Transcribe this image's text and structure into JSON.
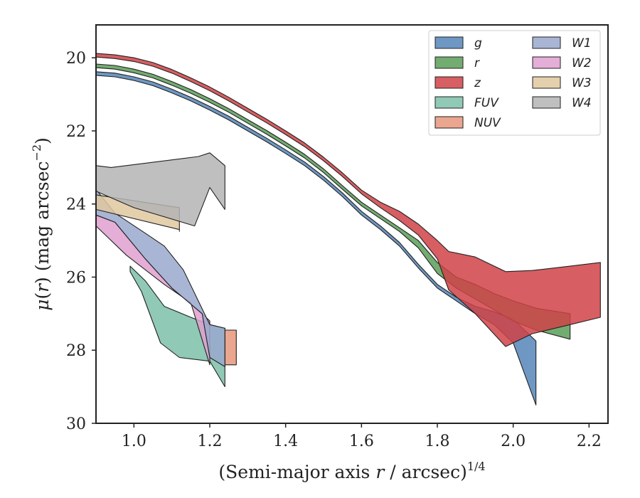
{
  "chart_data": {
    "type": "area",
    "xlabel": "(Semi-major axis r / arcsec)^1/4",
    "xlabel_parts": {
      "prefix": "(Semi-major axis ",
      "var": "r",
      "mid": " / arcsec)",
      "sup": "1/4"
    },
    "ylabel": "μ(r) (mag arcsec^−2)",
    "ylabel_parts": {
      "mu": "μ",
      "open": "(",
      "var": "r",
      "mid": ") (mag arcsec",
      "sup": "−2",
      "close": ")"
    },
    "xlim": [
      0.9,
      2.25
    ],
    "ylim": [
      30,
      19.1
    ],
    "y_inverted": true,
    "xticks": [
      1.0,
      1.2,
      1.4,
      1.6,
      1.8,
      2.0,
      2.2
    ],
    "xtick_labels": [
      "1.0",
      "1.2",
      "1.4",
      "1.6",
      "1.8",
      "2.0",
      "2.2"
    ],
    "yticks": [
      20,
      22,
      24,
      26,
      28,
      30
    ],
    "ytick_labels": [
      "20",
      "22",
      "24",
      "26",
      "28",
      "30"
    ],
    "grid": false,
    "legend_position": "top-right",
    "legend_columns": 2,
    "series": [
      {
        "name": "W4",
        "color": "#b4b4b4",
        "order": 8,
        "upper": [
          [
            0.9,
            22.95
          ],
          [
            0.94,
            23.0
          ],
          [
            1.17,
            22.7
          ],
          [
            1.2,
            22.6
          ],
          [
            1.24,
            22.95
          ],
          [
            1.24,
            24.15
          ]
        ],
        "lower": [
          [
            0.9,
            23.65
          ],
          [
            1.0,
            24.1
          ],
          [
            1.16,
            24.6
          ],
          [
            1.2,
            23.55
          ]
        ]
      },
      {
        "name": "W3",
        "color": "#e0c8a0",
        "order": 7,
        "upper": [
          [
            0.9,
            23.75
          ],
          [
            1.12,
            24.1
          ],
          [
            1.12,
            24.75
          ]
        ],
        "lower": [
          [
            0.9,
            24.15
          ],
          [
            1.12,
            24.7
          ]
        ]
      },
      {
        "name": "W1",
        "color": "#9aa8cc",
        "order": 6,
        "upper": [
          [
            0.9,
            23.6
          ],
          [
            0.95,
            24.25
          ],
          [
            1.03,
            24.8
          ],
          [
            1.08,
            25.15
          ],
          [
            1.13,
            25.8
          ],
          [
            1.2,
            27.3
          ],
          [
            1.24,
            27.4
          ]
        ],
        "lower": [
          [
            0.9,
            24.3
          ],
          [
            0.95,
            24.5
          ],
          [
            1.03,
            25.5
          ],
          [
            1.1,
            26.3
          ],
          [
            1.18,
            27.0
          ],
          [
            1.2,
            28.2
          ],
          [
            1.24,
            28.45
          ]
        ]
      },
      {
        "name": "W2",
        "color": "#dfa0d0",
        "order": 5,
        "upper": [
          [
            0.9,
            24.3
          ],
          [
            0.95,
            24.5
          ],
          [
            1.03,
            25.5
          ],
          [
            1.1,
            26.3
          ],
          [
            1.18,
            27.0
          ],
          [
            1.2,
            27.2
          ]
        ],
        "lower": [
          [
            0.9,
            24.6
          ],
          [
            0.98,
            25.4
          ],
          [
            1.08,
            26.2
          ],
          [
            1.15,
            26.7
          ],
          [
            1.2,
            28.4
          ]
        ]
      },
      {
        "name": "FUV",
        "color": "#7dbfa8",
        "order": 3,
        "upper": [
          [
            0.99,
            25.7
          ],
          [
            1.03,
            26.1
          ],
          [
            1.08,
            26.8
          ],
          [
            1.15,
            27.1
          ],
          [
            1.2,
            27.3
          ],
          [
            1.24,
            27.4
          ]
        ],
        "lower": [
          [
            0.99,
            25.85
          ],
          [
            1.02,
            26.4
          ],
          [
            1.07,
            27.8
          ],
          [
            1.12,
            28.2
          ],
          [
            1.2,
            28.3
          ],
          [
            1.24,
            29.0
          ]
        ]
      },
      {
        "name": "NUV",
        "color": "#e8977b",
        "order": 4,
        "upper": [
          [
            1.24,
            27.45
          ],
          [
            1.27,
            27.45
          ]
        ],
        "lower": [
          [
            1.24,
            28.4
          ],
          [
            1.27,
            28.4
          ]
        ]
      },
      {
        "name": "g",
        "color": "#5586b8",
        "order": 0,
        "upper": [
          [
            0.9,
            20.38
          ],
          [
            0.95,
            20.42
          ],
          [
            1.0,
            20.52
          ],
          [
            1.05,
            20.66
          ],
          [
            1.1,
            20.86
          ],
          [
            1.15,
            21.08
          ],
          [
            1.2,
            21.33
          ],
          [
            1.25,
            21.6
          ],
          [
            1.3,
            21.9
          ],
          [
            1.35,
            22.2
          ],
          [
            1.4,
            22.52
          ],
          [
            1.45,
            22.85
          ],
          [
            1.5,
            23.25
          ],
          [
            1.55,
            23.7
          ],
          [
            1.6,
            24.2
          ],
          [
            1.65,
            24.6
          ],
          [
            1.7,
            25.05
          ],
          [
            1.75,
            25.65
          ],
          [
            1.8,
            26.2
          ],
          [
            1.85,
            26.55
          ],
          [
            1.9,
            26.8
          ],
          [
            1.95,
            26.95
          ],
          [
            2.0,
            27.15
          ],
          [
            2.06,
            27.75
          ]
        ],
        "lower": [
          [
            0.9,
            20.48
          ],
          [
            0.95,
            20.52
          ],
          [
            1.0,
            20.62
          ],
          [
            1.05,
            20.76
          ],
          [
            1.1,
            20.96
          ],
          [
            1.15,
            21.18
          ],
          [
            1.2,
            21.43
          ],
          [
            1.25,
            21.7
          ],
          [
            1.3,
            22.0
          ],
          [
            1.35,
            22.3
          ],
          [
            1.4,
            22.62
          ],
          [
            1.45,
            22.95
          ],
          [
            1.5,
            23.35
          ],
          [
            1.55,
            23.8
          ],
          [
            1.6,
            24.3
          ],
          [
            1.65,
            24.7
          ],
          [
            1.7,
            25.15
          ],
          [
            1.75,
            25.75
          ],
          [
            1.8,
            26.3
          ],
          [
            1.85,
            26.65
          ],
          [
            1.9,
            27.0
          ],
          [
            1.95,
            27.3
          ],
          [
            2.0,
            27.8
          ],
          [
            2.06,
            29.5
          ]
        ]
      },
      {
        "name": "r",
        "color": "#5a9e58",
        "order": 1,
        "upper": [
          [
            0.9,
            20.17
          ],
          [
            0.95,
            20.21
          ],
          [
            1.0,
            20.31
          ],
          [
            1.05,
            20.45
          ],
          [
            1.1,
            20.65
          ],
          [
            1.15,
            20.87
          ],
          [
            1.2,
            21.12
          ],
          [
            1.25,
            21.39
          ],
          [
            1.3,
            21.69
          ],
          [
            1.35,
            21.99
          ],
          [
            1.4,
            22.31
          ],
          [
            1.45,
            22.64
          ],
          [
            1.5,
            23.04
          ],
          [
            1.55,
            23.5
          ],
          [
            1.6,
            23.95
          ],
          [
            1.65,
            24.3
          ],
          [
            1.7,
            24.65
          ],
          [
            1.75,
            25.0
          ],
          [
            1.8,
            25.6
          ],
          [
            1.85,
            26.0
          ],
          [
            1.9,
            26.2
          ],
          [
            1.95,
            26.45
          ],
          [
            2.0,
            26.65
          ],
          [
            2.06,
            26.85
          ],
          [
            2.15,
            27.0
          ]
        ],
        "lower": [
          [
            0.9,
            20.27
          ],
          [
            0.95,
            20.31
          ],
          [
            1.0,
            20.41
          ],
          [
            1.05,
            20.55
          ],
          [
            1.1,
            20.75
          ],
          [
            1.15,
            20.97
          ],
          [
            1.2,
            21.22
          ],
          [
            1.25,
            21.49
          ],
          [
            1.3,
            21.79
          ],
          [
            1.35,
            22.09
          ],
          [
            1.4,
            22.41
          ],
          [
            1.45,
            22.74
          ],
          [
            1.5,
            23.14
          ],
          [
            1.55,
            23.6
          ],
          [
            1.6,
            24.05
          ],
          [
            1.65,
            24.4
          ],
          [
            1.7,
            24.75
          ],
          [
            1.75,
            25.2
          ],
          [
            1.8,
            25.9
          ],
          [
            1.85,
            26.3
          ],
          [
            1.9,
            26.6
          ],
          [
            1.95,
            26.9
          ],
          [
            2.0,
            27.2
          ],
          [
            2.06,
            27.45
          ],
          [
            2.15,
            27.7
          ]
        ]
      },
      {
        "name": "z",
        "color": "#d04246",
        "order": 2,
        "upper": [
          [
            0.9,
            19.88
          ],
          [
            0.95,
            19.92
          ],
          [
            1.0,
            20.0
          ],
          [
            1.05,
            20.13
          ],
          [
            1.1,
            20.32
          ],
          [
            1.15,
            20.55
          ],
          [
            1.2,
            20.8
          ],
          [
            1.25,
            21.08
          ],
          [
            1.3,
            21.38
          ],
          [
            1.35,
            21.68
          ],
          [
            1.4,
            22.0
          ],
          [
            1.45,
            22.33
          ],
          [
            1.5,
            22.72
          ],
          [
            1.55,
            23.15
          ],
          [
            1.6,
            23.62
          ],
          [
            1.65,
            23.95
          ],
          [
            1.7,
            24.2
          ],
          [
            1.75,
            24.55
          ],
          [
            1.8,
            25.0
          ],
          [
            1.83,
            25.3
          ],
          [
            1.9,
            25.45
          ],
          [
            1.98,
            25.85
          ],
          [
            2.05,
            25.82
          ],
          [
            2.15,
            25.7
          ],
          [
            2.23,
            25.6
          ]
        ],
        "lower": [
          [
            0.9,
            19.98
          ],
          [
            0.95,
            20.02
          ],
          [
            1.0,
            20.1
          ],
          [
            1.05,
            20.23
          ],
          [
            1.1,
            20.42
          ],
          [
            1.15,
            20.65
          ],
          [
            1.2,
            20.9
          ],
          [
            1.25,
            21.18
          ],
          [
            1.3,
            21.48
          ],
          [
            1.35,
            21.78
          ],
          [
            1.4,
            22.1
          ],
          [
            1.45,
            22.43
          ],
          [
            1.5,
            22.82
          ],
          [
            1.55,
            23.25
          ],
          [
            1.6,
            23.72
          ],
          [
            1.65,
            24.1
          ],
          [
            1.7,
            24.45
          ],
          [
            1.75,
            24.85
          ],
          [
            1.8,
            25.5
          ],
          [
            1.83,
            26.35
          ],
          [
            1.9,
            27.0
          ],
          [
            1.98,
            27.9
          ],
          [
            2.05,
            27.55
          ],
          [
            2.15,
            27.3
          ],
          [
            2.23,
            27.1
          ]
        ]
      }
    ],
    "legend": [
      {
        "name": "g",
        "color": "#5586b8"
      },
      {
        "name": "r",
        "color": "#5a9e58"
      },
      {
        "name": "z",
        "color": "#d04246"
      },
      {
        "name": "FUV",
        "color": "#7dbfa8"
      },
      {
        "name": "NUV",
        "color": "#e8977b"
      },
      {
        "name": "W1",
        "color": "#9aa8cc"
      },
      {
        "name": "W2",
        "color": "#dfa0d0"
      },
      {
        "name": "W3",
        "color": "#e0c8a0"
      },
      {
        "name": "W4",
        "color": "#b4b4b4"
      }
    ]
  }
}
